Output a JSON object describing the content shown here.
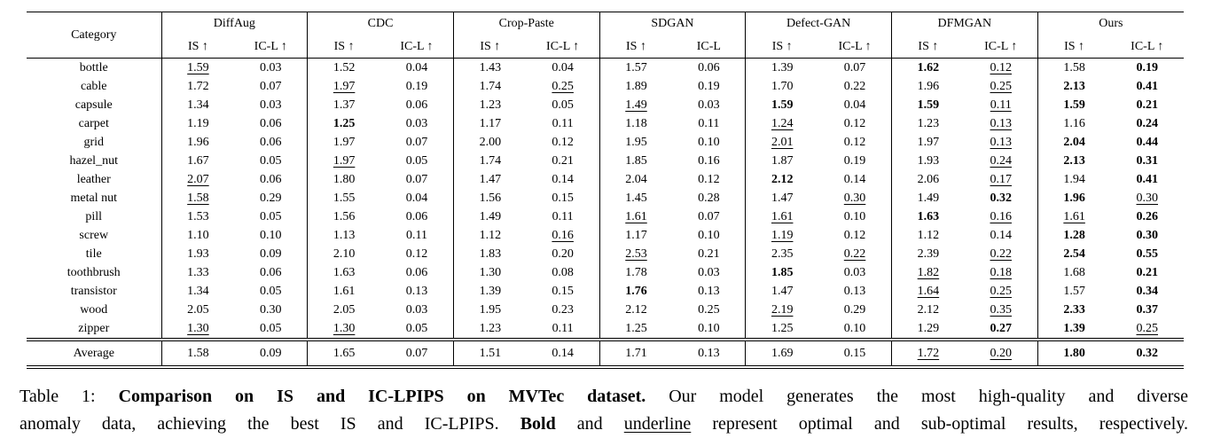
{
  "table": {
    "category_header": "Category",
    "columns": [
      {
        "name": "DiffAug",
        "sub": [
          "IS ↑",
          "IC-L ↑"
        ]
      },
      {
        "name": "CDC",
        "sub": [
          "IS ↑",
          "IC-L ↑"
        ]
      },
      {
        "name": "Crop-Paste",
        "sub": [
          "IS ↑",
          "IC-L ↑"
        ]
      },
      {
        "name": "SDGAN",
        "sub": [
          "IS ↑",
          "IC-L"
        ]
      },
      {
        "name": "Defect-GAN",
        "sub": [
          "IS ↑",
          "IC-L ↑"
        ]
      },
      {
        "name": "DFMGAN",
        "sub": [
          "IS ↑",
          "IC-L ↑"
        ]
      },
      {
        "name": "Ours",
        "sub": [
          "IS ↑",
          "IC-L ↑"
        ]
      }
    ],
    "style_legend": {
      "b": "bold = optimal",
      "u": "underline = sub-optimal"
    },
    "rows": [
      {
        "category": "bottle",
        "values": [
          [
            "1.59",
            "u"
          ],
          [
            "0.03",
            ""
          ],
          [
            "1.52",
            ""
          ],
          [
            "0.04",
            ""
          ],
          [
            "1.43",
            ""
          ],
          [
            "0.04",
            ""
          ],
          [
            "1.57",
            ""
          ],
          [
            "0.06",
            ""
          ],
          [
            "1.39",
            ""
          ],
          [
            "0.07",
            ""
          ],
          [
            "1.62",
            "b"
          ],
          [
            "0.12",
            "u"
          ],
          [
            "1.58",
            ""
          ],
          [
            "0.19",
            "b"
          ]
        ]
      },
      {
        "category": "cable",
        "values": [
          [
            "1.72",
            ""
          ],
          [
            "0.07",
            ""
          ],
          [
            "1.97",
            "u"
          ],
          [
            "0.19",
            ""
          ],
          [
            "1.74",
            ""
          ],
          [
            "0.25",
            "u"
          ],
          [
            "1.89",
            ""
          ],
          [
            "0.19",
            ""
          ],
          [
            "1.70",
            ""
          ],
          [
            "0.22",
            ""
          ],
          [
            "1.96",
            ""
          ],
          [
            "0.25",
            "u"
          ],
          [
            "2.13",
            "b"
          ],
          [
            "0.41",
            "b"
          ]
        ]
      },
      {
        "category": "capsule",
        "values": [
          [
            "1.34",
            ""
          ],
          [
            "0.03",
            ""
          ],
          [
            "1.37",
            ""
          ],
          [
            "0.06",
            ""
          ],
          [
            "1.23",
            ""
          ],
          [
            "0.05",
            ""
          ],
          [
            "1.49",
            "u"
          ],
          [
            "0.03",
            ""
          ],
          [
            "1.59",
            "b"
          ],
          [
            "0.04",
            ""
          ],
          [
            "1.59",
            "b"
          ],
          [
            "0.11",
            "u"
          ],
          [
            "1.59",
            "b"
          ],
          [
            "0.21",
            "b"
          ]
        ]
      },
      {
        "category": "carpet",
        "values": [
          [
            "1.19",
            ""
          ],
          [
            "0.06",
            ""
          ],
          [
            "1.25",
            "b"
          ],
          [
            "0.03",
            ""
          ],
          [
            "1.17",
            ""
          ],
          [
            "0.11",
            ""
          ],
          [
            "1.18",
            ""
          ],
          [
            "0.11",
            ""
          ],
          [
            "1.24",
            "u"
          ],
          [
            "0.12",
            ""
          ],
          [
            "1.23",
            ""
          ],
          [
            "0.13",
            "u"
          ],
          [
            "1.16",
            ""
          ],
          [
            "0.24",
            "b"
          ]
        ]
      },
      {
        "category": "grid",
        "values": [
          [
            "1.96",
            ""
          ],
          [
            "0.06",
            ""
          ],
          [
            "1.97",
            ""
          ],
          [
            "0.07",
            ""
          ],
          [
            "2.00",
            ""
          ],
          [
            "0.12",
            ""
          ],
          [
            "1.95",
            ""
          ],
          [
            "0.10",
            ""
          ],
          [
            "2.01",
            "u"
          ],
          [
            "0.12",
            ""
          ],
          [
            "1.97",
            ""
          ],
          [
            "0.13",
            "u"
          ],
          [
            "2.04",
            "b"
          ],
          [
            "0.44",
            "b"
          ]
        ]
      },
      {
        "category": "hazel_nut",
        "values": [
          [
            "1.67",
            ""
          ],
          [
            "0.05",
            ""
          ],
          [
            "1.97",
            "u"
          ],
          [
            "0.05",
            ""
          ],
          [
            "1.74",
            ""
          ],
          [
            "0.21",
            ""
          ],
          [
            "1.85",
            ""
          ],
          [
            "0.16",
            ""
          ],
          [
            "1.87",
            ""
          ],
          [
            "0.19",
            ""
          ],
          [
            "1.93",
            ""
          ],
          [
            "0.24",
            "u"
          ],
          [
            "2.13",
            "b"
          ],
          [
            "0.31",
            "b"
          ]
        ]
      },
      {
        "category": "leather",
        "values": [
          [
            "2.07",
            "u"
          ],
          [
            "0.06",
            ""
          ],
          [
            "1.80",
            ""
          ],
          [
            "0.07",
            ""
          ],
          [
            "1.47",
            ""
          ],
          [
            "0.14",
            ""
          ],
          [
            "2.04",
            ""
          ],
          [
            "0.12",
            ""
          ],
          [
            "2.12",
            "b"
          ],
          [
            "0.14",
            ""
          ],
          [
            "2.06",
            ""
          ],
          [
            "0.17",
            "u"
          ],
          [
            "1.94",
            ""
          ],
          [
            "0.41",
            "b"
          ]
        ]
      },
      {
        "category": "metal nut",
        "values": [
          [
            "1.58",
            "u"
          ],
          [
            "0.29",
            ""
          ],
          [
            "1.55",
            ""
          ],
          [
            "0.04",
            ""
          ],
          [
            "1.56",
            ""
          ],
          [
            "0.15",
            ""
          ],
          [
            "1.45",
            ""
          ],
          [
            "0.28",
            ""
          ],
          [
            "1.47",
            ""
          ],
          [
            "0.30",
            "u"
          ],
          [
            "1.49",
            ""
          ],
          [
            "0.32",
            "b"
          ],
          [
            "1.96",
            "b"
          ],
          [
            "0.30",
            "u"
          ]
        ]
      },
      {
        "category": "pill",
        "values": [
          [
            "1.53",
            ""
          ],
          [
            "0.05",
            ""
          ],
          [
            "1.56",
            ""
          ],
          [
            "0.06",
            ""
          ],
          [
            "1.49",
            ""
          ],
          [
            "0.11",
            ""
          ],
          [
            "1.61",
            "u"
          ],
          [
            "0.07",
            ""
          ],
          [
            "1.61",
            "u"
          ],
          [
            "0.10",
            ""
          ],
          [
            "1.63",
            "b"
          ],
          [
            "0.16",
            "u"
          ],
          [
            "1.61",
            "u"
          ],
          [
            "0.26",
            "b"
          ]
        ]
      },
      {
        "category": "screw",
        "values": [
          [
            "1.10",
            ""
          ],
          [
            "0.10",
            ""
          ],
          [
            "1.13",
            ""
          ],
          [
            "0.11",
            ""
          ],
          [
            "1.12",
            ""
          ],
          [
            "0.16",
            "u"
          ],
          [
            "1.17",
            ""
          ],
          [
            "0.10",
            ""
          ],
          [
            "1.19",
            "u"
          ],
          [
            "0.12",
            ""
          ],
          [
            "1.12",
            ""
          ],
          [
            "0.14",
            ""
          ],
          [
            "1.28",
            "b"
          ],
          [
            "0.30",
            "b"
          ]
        ]
      },
      {
        "category": "tile",
        "values": [
          [
            "1.93",
            ""
          ],
          [
            "0.09",
            ""
          ],
          [
            "2.10",
            ""
          ],
          [
            "0.12",
            ""
          ],
          [
            "1.83",
            ""
          ],
          [
            "0.20",
            ""
          ],
          [
            "2.53",
            "u"
          ],
          [
            "0.21",
            ""
          ],
          [
            "2.35",
            ""
          ],
          [
            "0.22",
            "u"
          ],
          [
            "2.39",
            ""
          ],
          [
            "0.22",
            "u"
          ],
          [
            "2.54",
            "b"
          ],
          [
            "0.55",
            "b"
          ]
        ]
      },
      {
        "category": "toothbrush",
        "values": [
          [
            "1.33",
            ""
          ],
          [
            "0.06",
            ""
          ],
          [
            "1.63",
            ""
          ],
          [
            "0.06",
            ""
          ],
          [
            "1.30",
            ""
          ],
          [
            "0.08",
            ""
          ],
          [
            "1.78",
            ""
          ],
          [
            "0.03",
            ""
          ],
          [
            "1.85",
            "b"
          ],
          [
            "0.03",
            ""
          ],
          [
            "1.82",
            "u"
          ],
          [
            "0.18",
            "u"
          ],
          [
            "1.68",
            ""
          ],
          [
            "0.21",
            "b"
          ]
        ]
      },
      {
        "category": "transistor",
        "values": [
          [
            "1.34",
            ""
          ],
          [
            "0.05",
            ""
          ],
          [
            "1.61",
            ""
          ],
          [
            "0.13",
            ""
          ],
          [
            "1.39",
            ""
          ],
          [
            "0.15",
            ""
          ],
          [
            "1.76",
            "b"
          ],
          [
            "0.13",
            ""
          ],
          [
            "1.47",
            ""
          ],
          [
            "0.13",
            ""
          ],
          [
            "1.64",
            "u"
          ],
          [
            "0.25",
            "u"
          ],
          [
            "1.57",
            ""
          ],
          [
            "0.34",
            "b"
          ]
        ]
      },
      {
        "category": "wood",
        "values": [
          [
            "2.05",
            ""
          ],
          [
            "0.30",
            ""
          ],
          [
            "2.05",
            ""
          ],
          [
            "0.03",
            ""
          ],
          [
            "1.95",
            ""
          ],
          [
            "0.23",
            ""
          ],
          [
            "2.12",
            ""
          ],
          [
            "0.25",
            ""
          ],
          [
            "2.19",
            "u"
          ],
          [
            "0.29",
            ""
          ],
          [
            "2.12",
            ""
          ],
          [
            "0.35",
            "u"
          ],
          [
            "2.33",
            "b"
          ],
          [
            "0.37",
            "b"
          ]
        ]
      },
      {
        "category": "zipper",
        "values": [
          [
            "1.30",
            "u"
          ],
          [
            "0.05",
            ""
          ],
          [
            "1.30",
            "u"
          ],
          [
            "0.05",
            ""
          ],
          [
            "1.23",
            ""
          ],
          [
            "0.11",
            ""
          ],
          [
            "1.25",
            ""
          ],
          [
            "0.10",
            ""
          ],
          [
            "1.25",
            ""
          ],
          [
            "0.10",
            ""
          ],
          [
            "1.29",
            ""
          ],
          [
            "0.27",
            "b"
          ],
          [
            "1.39",
            "b"
          ],
          [
            "0.25",
            "u"
          ]
        ]
      }
    ],
    "average_row": {
      "category": "Average",
      "values": [
        [
          "1.58",
          ""
        ],
        [
          "0.09",
          ""
        ],
        [
          "1.65",
          ""
        ],
        [
          "0.07",
          ""
        ],
        [
          "1.51",
          ""
        ],
        [
          "0.14",
          ""
        ],
        [
          "1.71",
          ""
        ],
        [
          "0.13",
          ""
        ],
        [
          "1.69",
          ""
        ],
        [
          "0.15",
          ""
        ],
        [
          "1.72",
          "u"
        ],
        [
          "0.20",
          "u"
        ],
        [
          "1.80",
          "b"
        ],
        [
          "0.32",
          "b"
        ]
      ]
    }
  },
  "caption": {
    "prefix": "Table 1:",
    "title_bold": "Comparison on IS and IC-LPIPS on MVTec dataset.",
    "body_line1": "Our model generates the most high-quality and diverse",
    "body_line2_pre": "anomaly data, achieving the best IS and IC-LPIPS.",
    "bold_word": "Bold",
    "conj": "and",
    "underline_word": "underline",
    "suffix": "represent optimal and sub-optimal results, respectively."
  }
}
